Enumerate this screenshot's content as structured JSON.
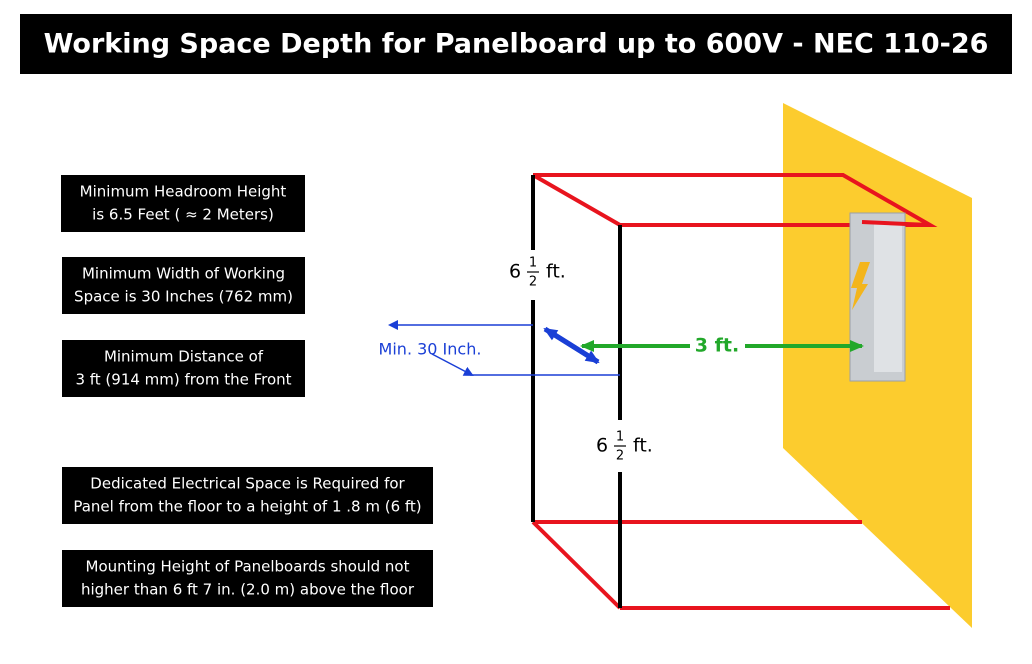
{
  "header": {
    "title": "Working Space Depth for Panelboard up to 600V - NEC 110-26"
  },
  "notes": [
    {
      "lines": [
        "Minimum Headroom Height",
        "is 6.5 Feet ( ≈ 2 Meters)"
      ]
    },
    {
      "lines": [
        "Minimum Width of Working",
        "Space is 30 Inches (762 mm)"
      ]
    },
    {
      "lines": [
        "Minimum Distance of",
        "3 ft (914 mm) from the Front"
      ]
    },
    {
      "lines": [
        "Dedicated Electrical Space is Required for",
        "Panel from the floor to a height of 1 .8 m (6 ft)"
      ]
    },
    {
      "lines": [
        "Mounting Height of Panelboards should not",
        "higher than 6 ft 7 in. (2.0 m) above the floor"
      ]
    }
  ],
  "labels": {
    "height_back": {
      "whole": "6",
      "num": "1",
      "den": "2",
      "unit": "ft."
    },
    "height_front": {
      "whole": "6",
      "num": "1",
      "den": "2",
      "unit": "ft."
    },
    "width": "Min. 30 Inch.",
    "depth": "3 ft."
  }
}
